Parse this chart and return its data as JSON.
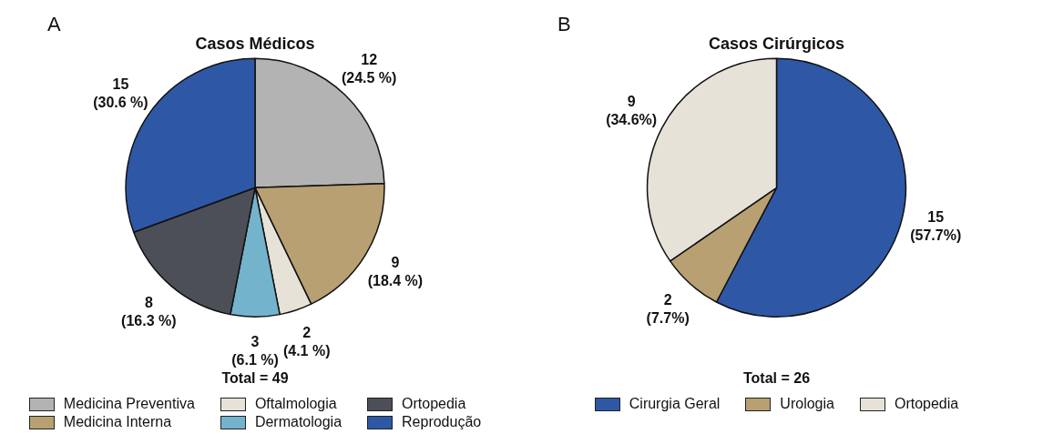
{
  "chart_data": [
    {
      "type": "pie",
      "title": "Casos Médicos",
      "categories": [
        "Medicina Preventiva",
        "Medicina Interna",
        "Oftalmologia",
        "Dermatologia",
        "Ortopedia",
        "Reprodução"
      ],
      "values": [
        12,
        9,
        2,
        3,
        8,
        15
      ],
      "colors": [
        "#b3b3b3",
        "#b8a073",
        "#e6e2d8",
        "#74b3cc",
        "#4c4f57",
        "#2e58a6"
      ],
      "value_labels": [
        "12\n(24.5 %)",
        "9\n(18.4 %)",
        "2\n(4.1 %)",
        "3\n(6.1 %)",
        "8\n(16.3 %)",
        "15\n(30.6 %)"
      ],
      "annotations": [
        "A",
        "Total = 49"
      ],
      "legend": "bottom"
    },
    {
      "type": "pie",
      "title": "Casos Cirúrgicos",
      "categories": [
        "Cirurgia Geral",
        "Urologia",
        "Ortopedia"
      ],
      "values": [
        15,
        2,
        9
      ],
      "colors": [
        "#2e58a6",
        "#b8a073",
        "#e6e2d8"
      ],
      "value_labels": [
        "15\n(57.7%)",
        "2\n(7.7%)",
        "9\n(34.6%)"
      ],
      "annotations": [
        "B",
        "Total = 26"
      ],
      "legend": "bottom"
    }
  ]
}
